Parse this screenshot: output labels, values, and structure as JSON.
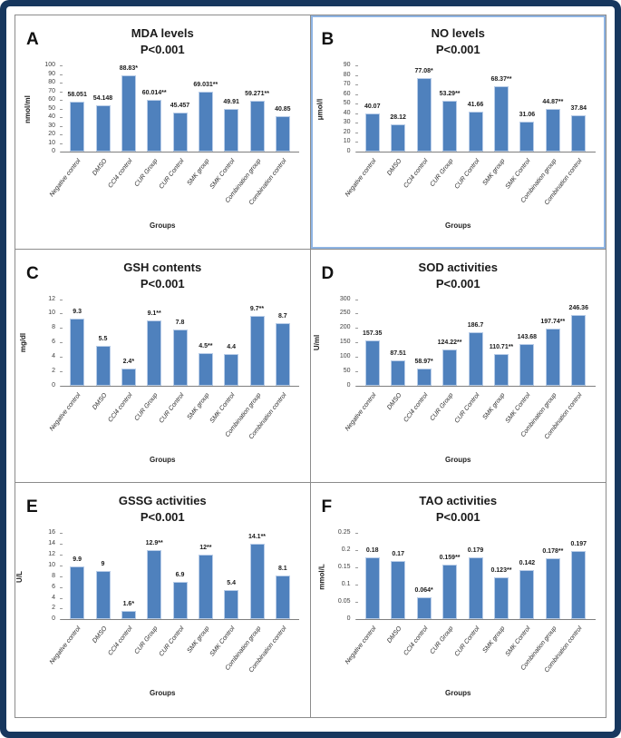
{
  "colors": {
    "bar": "#4f81bd",
    "frame": "#17375e",
    "panel_b_border": "#8eb4e3",
    "grid_line": "#8c8c8c"
  },
  "chart_data": [
    {
      "panel": "A",
      "type": "bar",
      "title": "MDA levels",
      "subtitle": "P<0.001",
      "xlabel": "Groups",
      "ylabel": "nmol/ml",
      "ylim": [
        0,
        100
      ],
      "yticks": [
        "0",
        "10",
        "20",
        "30",
        "40",
        "50",
        "60",
        "70",
        "80",
        "90",
        "100"
      ],
      "categories": [
        "Negative control",
        "DMSO",
        "CCl4 control",
        "CUR Group",
        "CUR Control",
        "SMK group",
        "SMK Control",
        "Combination group",
        "Combination control"
      ],
      "values": [
        58.051,
        54.148,
        88.83,
        60.014,
        45.457,
        69.031,
        49.91,
        59.271,
        40.85
      ],
      "labels": [
        "58.051",
        "54.148",
        "88.83*",
        "60.014**",
        "45.457",
        "69.031**",
        "49.91",
        "59.271**",
        "40.85"
      ]
    },
    {
      "panel": "B",
      "type": "bar",
      "title": "NO levels",
      "subtitle": "P<0.001",
      "xlabel": "Groups",
      "ylabel": "μmol/l",
      "ylim": [
        0,
        90
      ],
      "yticks": [
        "0",
        "10",
        "20",
        "30",
        "40",
        "50",
        "60",
        "70",
        "80",
        "90"
      ],
      "categories": [
        "Negative control",
        "DMSO",
        "CCl4 control",
        "CUR Group",
        "CUR Control",
        "SMK group",
        "SMK Control",
        "Combination group",
        "Combination control"
      ],
      "values": [
        40.07,
        28.12,
        77.08,
        53.29,
        41.66,
        68.37,
        31.06,
        44.87,
        37.84
      ],
      "labels": [
        "40.07",
        "28.12",
        "77.08*",
        "53.29**",
        "41.66",
        "68.37**",
        "31.06",
        "44.87**",
        "37.84"
      ]
    },
    {
      "panel": "C",
      "type": "bar",
      "title": "GSH contents",
      "subtitle": "P<0.001",
      "xlabel": "Groups",
      "ylabel": "mg/dl",
      "ylim": [
        0,
        12
      ],
      "yticks": [
        "0",
        "2",
        "4",
        "6",
        "8",
        "10",
        "12"
      ],
      "categories": [
        "Negative control",
        "DMSO",
        "CCl4 control",
        "CUR Group",
        "CUR Control",
        "SMK group",
        "SMK Control",
        "Combination group",
        "Combination control"
      ],
      "values": [
        9.3,
        5.5,
        2.4,
        9.1,
        7.8,
        4.5,
        4.4,
        9.7,
        8.7
      ],
      "labels": [
        "9.3",
        "5.5",
        "2.4*",
        "9.1**",
        "7.8",
        "4.5**",
        "4.4",
        "9.7**",
        "8.7"
      ]
    },
    {
      "panel": "D",
      "type": "bar",
      "title": "SOD activities",
      "subtitle": "P<0.001",
      "xlabel": "Groups",
      "ylabel": "U/ml",
      "ylim": [
        0,
        300
      ],
      "yticks": [
        "0",
        "50",
        "100",
        "150",
        "200",
        "250",
        "300"
      ],
      "categories": [
        "Negative control",
        "DMSO",
        "CCl4 control",
        "CUR Group",
        "CUR Control",
        "SMK group",
        "SMK Control",
        "Combination group",
        "Combination control"
      ],
      "values": [
        157.35,
        87.51,
        58.97,
        124.22,
        186.7,
        110.71,
        143.68,
        197.74,
        246.36
      ],
      "labels": [
        "157.35",
        "87.51",
        "58.97*",
        "124.22**",
        "186.7",
        "110.71**",
        "143.68",
        "197.74**",
        "246.36"
      ]
    },
    {
      "panel": "E",
      "type": "bar",
      "title": "GSSG activities",
      "subtitle": "P<0.001",
      "xlabel": "Groups",
      "ylabel": "U/L",
      "ylim": [
        0,
        16
      ],
      "yticks": [
        "0",
        "2",
        "4",
        "6",
        "8",
        "10",
        "12",
        "14",
        "16"
      ],
      "categories": [
        "Negative control",
        "DMSO",
        "CCl4 control",
        "CUR Group",
        "CUR Control",
        "SMK group",
        "SMK Control",
        "Combination group",
        "Combination control"
      ],
      "values": [
        9.9,
        9,
        1.6,
        12.9,
        6.9,
        12,
        5.4,
        14.1,
        8.1
      ],
      "labels": [
        "9.9",
        "9",
        "1.6*",
        "12.9**",
        "6.9",
        "12**",
        "5.4",
        "14.1**",
        "8.1"
      ]
    },
    {
      "panel": "F",
      "type": "bar",
      "title": "TAO activities",
      "subtitle": "P<0.001",
      "xlabel": "Groups",
      "ylabel": "mmol/L",
      "ylim": [
        0,
        0.25
      ],
      "yticks": [
        "0",
        "0.05",
        "0.1",
        "0.15",
        "0.2",
        "0.25"
      ],
      "categories": [
        "Negative control",
        "DMSO",
        "CCl4 control",
        "CUR Group",
        "CUR Control",
        "SMK group",
        "SMK Control",
        "Combination group",
        "Combination control"
      ],
      "values": [
        0.18,
        0.17,
        0.064,
        0.159,
        0.179,
        0.123,
        0.142,
        0.178,
        0.197
      ],
      "labels": [
        "0.18",
        "0.17",
        "0.064*",
        "0.159**",
        "0.179",
        "0.123**",
        "0.142",
        "0.178**",
        "0.197"
      ]
    }
  ]
}
